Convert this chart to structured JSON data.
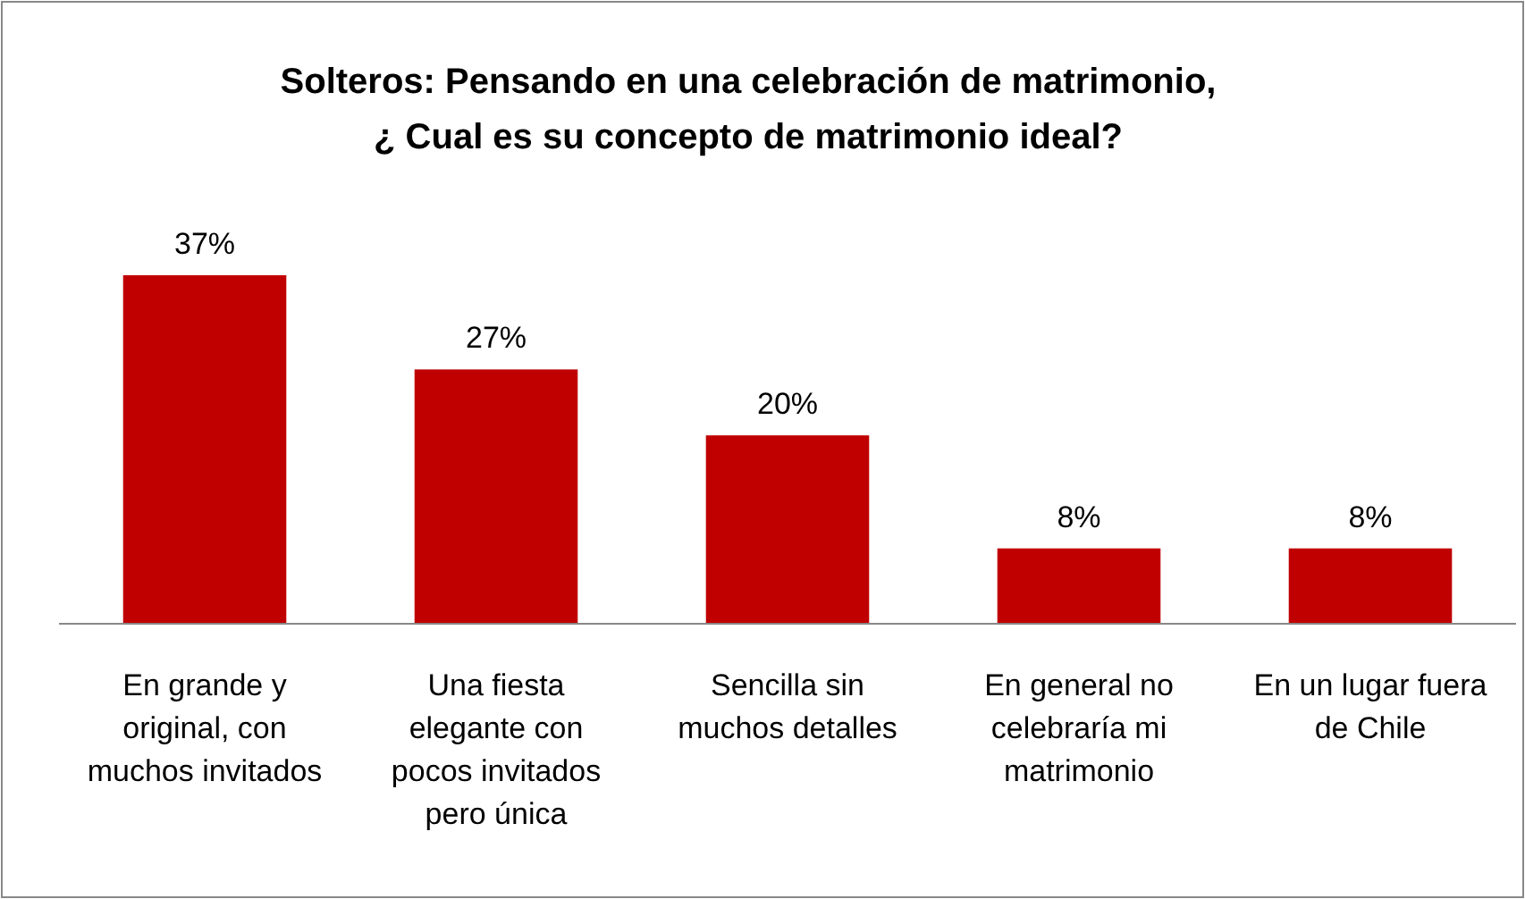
{
  "chart_data": {
    "type": "bar",
    "title": "Solteros: Pensando en una celebración de matrimonio,\n¿ Cual es su concepto de matrimonio ideal?",
    "categories": [
      "En grande y original, con muchos invitados",
      "Una fiesta elegante con pocos invitados pero única",
      "Sencilla sin muchos detalles",
      "En general no celebraría mi matrimonio",
      "En un lugar fuera de Chile"
    ],
    "values": [
      37,
      27,
      20,
      8,
      8
    ],
    "value_labels": [
      "37%",
      "27%",
      "20%",
      "8%",
      "8%"
    ],
    "color": "#c00000"
  }
}
